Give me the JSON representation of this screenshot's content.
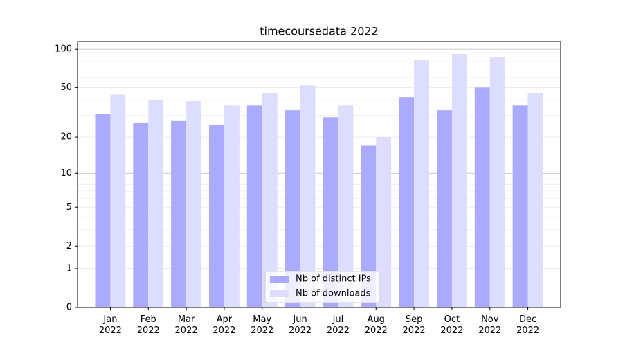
{
  "chart_data": {
    "type": "bar",
    "title": "timecoursedata 2022",
    "scale": "log1p",
    "categories": [
      "Jan 2022",
      "Feb 2022",
      "Mar 2022",
      "Apr 2022",
      "May 2022",
      "Jun 2022",
      "Jul 2022",
      "Aug 2022",
      "Sep 2022",
      "Oct 2022",
      "Nov 2022",
      "Dec 2022"
    ],
    "series": [
      {
        "name": "Nb of distinct IPs",
        "color": "#aaaaff",
        "values": [
          31,
          26,
          27,
          25,
          36,
          33,
          29,
          17,
          42,
          33,
          50,
          36
        ]
      },
      {
        "name": "Nb of downloads",
        "color": "#ddddff",
        "values": [
          44,
          40,
          39,
          36,
          45,
          52,
          36,
          20,
          83,
          92,
          87,
          45
        ]
      }
    ],
    "ylim": [
      0,
      115
    ],
    "yticks": [
      0,
      1,
      2,
      5,
      10,
      20,
      50,
      100
    ],
    "minor_yticks": [
      3,
      4,
      6,
      7,
      8,
      9,
      30,
      40,
      60,
      70,
      80,
      90
    ],
    "grid": true,
    "legend": "lower center"
  }
}
